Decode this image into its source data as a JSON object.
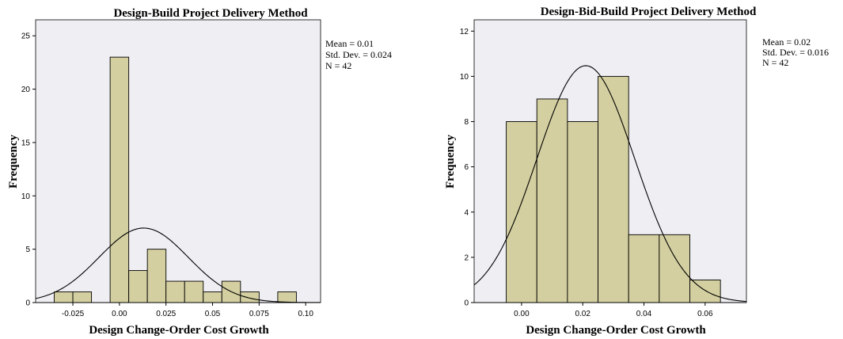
{
  "chart_data": [
    {
      "type": "bar",
      "title": "Design-Build Project Delivery Method",
      "xlabel": "Design Change-Order Cost Growth",
      "ylabel": "Frequency",
      "xlim": [
        -0.045,
        0.108
      ],
      "ylim": [
        0,
        26.5
      ],
      "xticks": [
        "-0.025",
        "0.00",
        "0.025",
        "0.05",
        "0.075",
        "0.10"
      ],
      "xtick_values": [
        -0.025,
        0.0,
        0.025,
        0.05,
        0.075,
        0.1
      ],
      "yticks": [
        "0",
        "5",
        "10",
        "15",
        "20",
        "25"
      ],
      "ytick_values": [
        0,
        5,
        10,
        15,
        20,
        25
      ],
      "bins": [
        {
          "x0": -0.035,
          "x1": -0.025,
          "count": 1
        },
        {
          "x0": -0.025,
          "x1": -0.015,
          "count": 1
        },
        {
          "x0": -0.005,
          "x1": 0.005,
          "count": 23
        },
        {
          "x0": 0.005,
          "x1": 0.015,
          "count": 3
        },
        {
          "x0": 0.015,
          "x1": 0.025,
          "count": 5
        },
        {
          "x0": 0.025,
          "x1": 0.035,
          "count": 2
        },
        {
          "x0": 0.035,
          "x1": 0.045,
          "count": 2
        },
        {
          "x0": 0.045,
          "x1": 0.055,
          "count": 1
        },
        {
          "x0": 0.055,
          "x1": 0.065,
          "count": 2
        },
        {
          "x0": 0.065,
          "x1": 0.075,
          "count": 1
        },
        {
          "x0": 0.085,
          "x1": 0.095,
          "count": 1
        }
      ],
      "curve": {
        "mean": 0.013,
        "sd": 0.024,
        "n": 42,
        "binwidth": 0.01
      },
      "stats": [
        "Mean = 0.01",
        "Std. Dev. = 0.024",
        "N = 42"
      ],
      "grid": false,
      "bar_color": "#d3cfa0",
      "plot_bg": "#efeef3"
    },
    {
      "type": "bar",
      "title": "Design-Bid-Build Project Delivery Method",
      "xlabel": "Design Change-Order Cost Growth",
      "ylabel": "Frequency",
      "xlim": [
        -0.0155,
        0.0735
      ],
      "ylim": [
        0,
        12.5
      ],
      "xticks": [
        "0.00",
        "0.02",
        "0.04",
        "0.06"
      ],
      "xtick_values": [
        0.0,
        0.02,
        0.04,
        0.06
      ],
      "yticks": [
        "0",
        "2",
        "4",
        "6",
        "8",
        "10",
        "12"
      ],
      "ytick_values": [
        0,
        2,
        4,
        6,
        8,
        10,
        12
      ],
      "bins": [
        {
          "x0": -0.005,
          "x1": 0.005,
          "count": 8
        },
        {
          "x0": 0.005,
          "x1": 0.015,
          "count": 9
        },
        {
          "x0": 0.015,
          "x1": 0.025,
          "count": 8
        },
        {
          "x0": 0.025,
          "x1": 0.035,
          "count": 10
        },
        {
          "x0": 0.035,
          "x1": 0.045,
          "count": 3
        },
        {
          "x0": 0.045,
          "x1": 0.055,
          "count": 3
        },
        {
          "x0": 0.055,
          "x1": 0.065,
          "count": 1
        }
      ],
      "curve": {
        "mean": 0.021,
        "sd": 0.016,
        "n": 42,
        "binwidth": 0.01
      },
      "stats": [
        "Mean = 0.02",
        "Std. Dev. = 0.016",
        "N = 42"
      ],
      "grid": false,
      "bar_color": "#d3cfa0",
      "plot_bg": "#efeef3"
    }
  ]
}
